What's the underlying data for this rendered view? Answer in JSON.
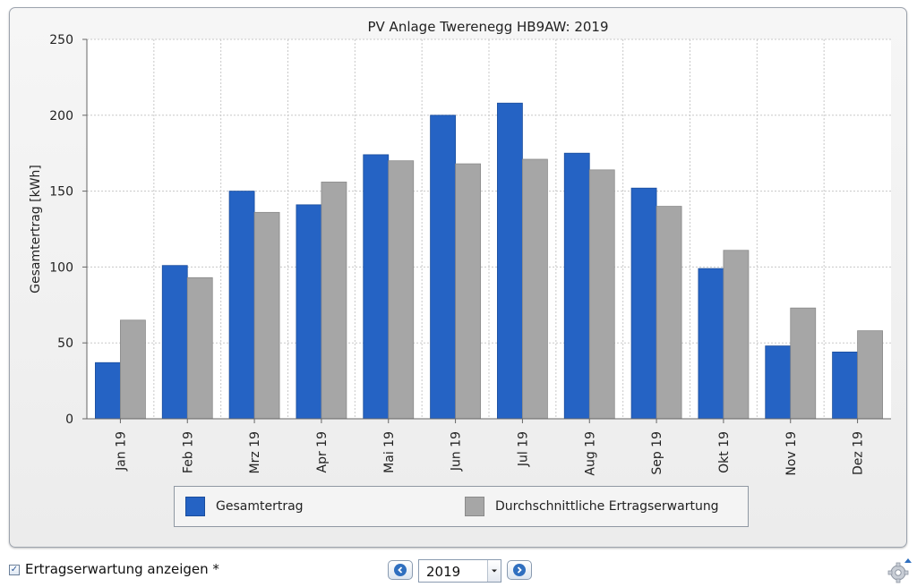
{
  "chart_data": {
    "type": "bar",
    "title": "PV Anlage Twerenegg HB9AW: 2019",
    "xlabel": "",
    "ylabel": "Gesamtertrag [kWh]",
    "ylim": [
      0,
      250
    ],
    "yticks": [
      0,
      50,
      100,
      150,
      200,
      250
    ],
    "grid": true,
    "legend_position": "bottom",
    "categories": [
      "Jan 19",
      "Feb 19",
      "Mrz 19",
      "Apr 19",
      "Mai 19",
      "Jun 19",
      "Jul 19",
      "Aug 19",
      "Sep 19",
      "Okt 19",
      "Nov 19",
      "Dez 19"
    ],
    "series": [
      {
        "name": "Gesamtertrag",
        "color": "#2563c4",
        "values": [
          37,
          101,
          150,
          141,
          174,
          200,
          208,
          175,
          152,
          99,
          48,
          44
        ]
      },
      {
        "name": "Durchschnittliche Ertragserwartung",
        "color": "#a6a6a6",
        "values": [
          65,
          93,
          136,
          156,
          170,
          168,
          171,
          164,
          140,
          111,
          73,
          58
        ]
      }
    ]
  },
  "controls": {
    "checkbox_label": "Ertragserwartung anzeigen *",
    "checkbox_checked": true,
    "year_value": "2019"
  },
  "icons": {
    "prev": "chevron-left-icon",
    "next": "chevron-right-icon",
    "settings": "gear-icon"
  }
}
